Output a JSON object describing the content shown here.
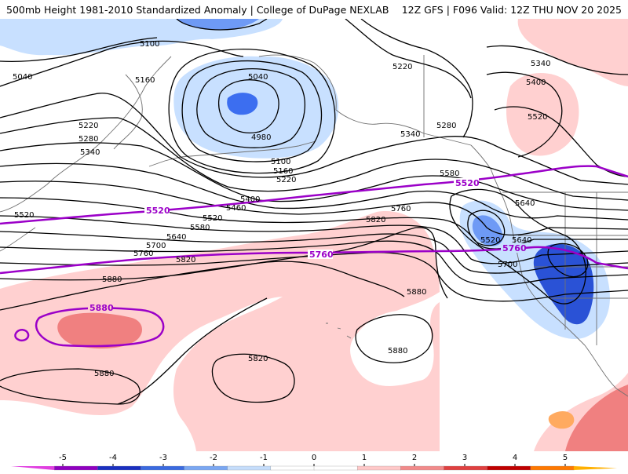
{
  "header": {
    "title_left": "500mb Height 1981-2010 Standardized Anomaly | College of DuPage NEXLAB",
    "title_right": "12Z GFS | F096 Valid: 12Z THU NOV 20 2025"
  },
  "map": {
    "region": "North Pacific / Alaska / Western North America",
    "colors": {
      "neg_light": "#c8e0ff",
      "neg_mid": "#6e9af5",
      "neg_dark": "#2a52d6",
      "pos_light": "#ffd0d0",
      "pos_mid": "#f08080",
      "contour": "#000000",
      "highlight_contour": "#9b00c8",
      "coast": "#707070"
    },
    "contour_labels": [
      "5100",
      "5040",
      "5160",
      "5040",
      "4980",
      "5100",
      "5160",
      "5220",
      "5220",
      "5280",
      "5340",
      "5220",
      "5280",
      "5340",
      "5400",
      "5460",
      "5520",
      "5580",
      "5640",
      "5700",
      "5760",
      "5820",
      "5880",
      "5820",
      "5760",
      "5580",
      "5640",
      "5520",
      "5640",
      "5700",
      "5880",
      "5880",
      "5820",
      "5880",
      "5340",
      "5400",
      "5520",
      "5220",
      "5280",
      "5340",
      "5580"
    ],
    "highlight_labels": [
      "5520",
      "5760",
      "5880",
      "5520",
      "5760"
    ]
  },
  "colorbar": {
    "ticks": [
      "-5",
      "-4",
      "-3",
      "-2",
      "-1",
      "0",
      "1",
      "2",
      "3",
      "4",
      "5"
    ],
    "colors": [
      "#e040e0",
      "#9000c0",
      "#1a2fc0",
      "#3a6ae0",
      "#7aa7f2",
      "#c5ddfb",
      "#ffffff",
      "#ffffff",
      "#ffc8c8",
      "#f28a8a",
      "#e04040",
      "#c00000",
      "#ff7800",
      "#ffb000"
    ]
  }
}
